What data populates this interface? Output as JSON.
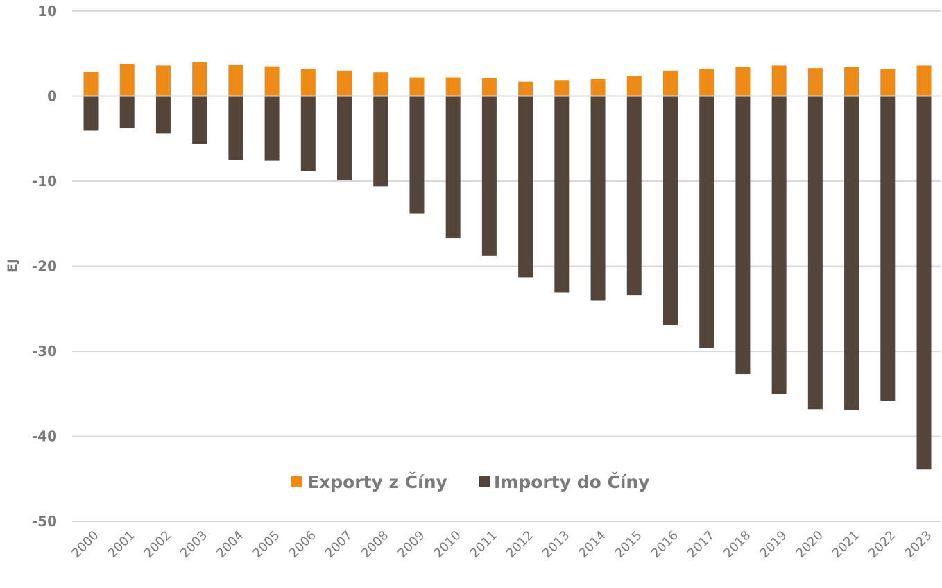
{
  "chart_data": {
    "type": "bar",
    "title": "",
    "xlabel": "",
    "ylabel": "EJ",
    "ylim": [
      -50,
      10
    ],
    "yticks": [
      "10",
      "0",
      "-10",
      "-20",
      "-30",
      "-40",
      "-50"
    ],
    "ytick_values": [
      10,
      0,
      -10,
      -20,
      -30,
      -40,
      -50
    ],
    "grid": true,
    "legend_position": "bottom-center (inside plot)",
    "categories": [
      "2000",
      "2001",
      "2002",
      "2003",
      "2004",
      "2005",
      "2006",
      "2007",
      "2008",
      "2009",
      "2010",
      "2011",
      "2012",
      "2013",
      "2014",
      "2015",
      "2016",
      "2017",
      "2018",
      "2019",
      "2020",
      "2021",
      "2022",
      "2023"
    ],
    "series": [
      {
        "name": "Exporty z Číny",
        "color": "#ed8b16",
        "values": [
          2.9,
          3.8,
          3.6,
          4.0,
          3.7,
          3.5,
          3.2,
          3.0,
          2.8,
          2.2,
          2.2,
          2.1,
          1.7,
          1.9,
          2.0,
          2.4,
          3.0,
          3.2,
          3.4,
          3.6,
          3.3,
          3.4,
          3.2,
          3.6
        ]
      },
      {
        "name": "Importy do Číny",
        "color": "#53453a",
        "values": [
          -4.0,
          -3.8,
          -4.4,
          -5.6,
          -7.5,
          -7.6,
          -8.8,
          -9.9,
          -10.6,
          -13.8,
          -16.7,
          -18.8,
          -21.3,
          -23.1,
          -24.0,
          -23.4,
          -26.9,
          -29.6,
          -32.7,
          -35.0,
          -36.8,
          -36.9,
          -35.8,
          -43.9
        ]
      }
    ]
  }
}
